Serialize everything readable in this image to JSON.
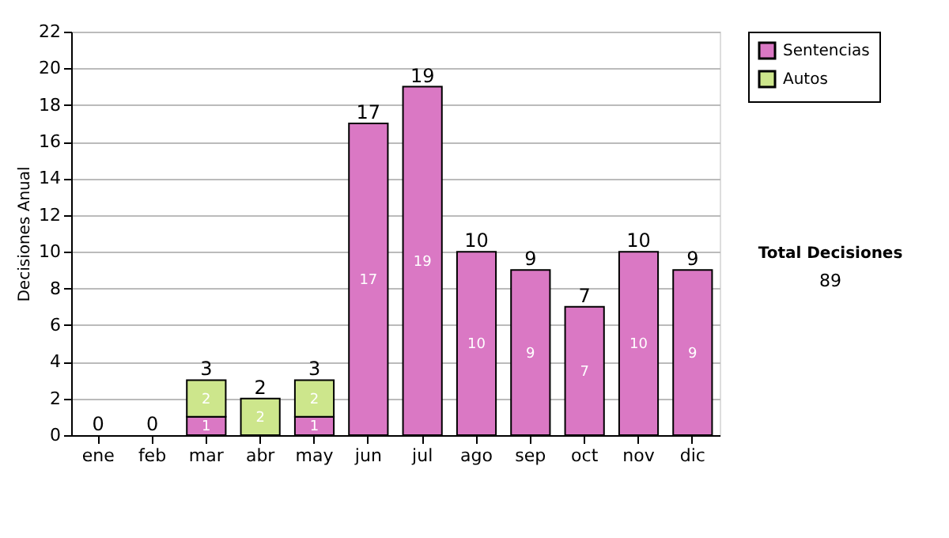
{
  "chart_data": {
    "type": "bar",
    "stacked": true,
    "ylabel": "Decisiones Anual",
    "categories": [
      "ene",
      "feb",
      "mar",
      "abr",
      "may",
      "jun",
      "jul",
      "ago",
      "sep",
      "oct",
      "nov",
      "dic"
    ],
    "series": [
      {
        "name": "Sentencias",
        "color": "#da78c4",
        "values": [
          0,
          0,
          1,
          0,
          1,
          17,
          19,
          10,
          9,
          7,
          10,
          9
        ],
        "value_labels": [
          null,
          null,
          "1",
          null,
          "1",
          "17",
          "19",
          "10",
          "9",
          "7",
          "10",
          "9"
        ]
      },
      {
        "name": "Autos",
        "color": "#cde68c",
        "values": [
          0,
          0,
          2,
          2,
          2,
          0,
          0,
          0,
          0,
          0,
          0,
          0
        ],
        "value_labels": [
          null,
          null,
          "2",
          "2",
          "2",
          null,
          null,
          null,
          null,
          null,
          null,
          null
        ]
      }
    ],
    "totals": [
      "0",
      "0",
      "3",
      "2",
      "3",
      "17",
      "19",
      "10",
      "9",
      "7",
      "10",
      "9"
    ],
    "ylim": [
      0,
      22
    ],
    "yticks": [
      0,
      2,
      4,
      6,
      8,
      10,
      12,
      14,
      16,
      18,
      20,
      22
    ],
    "grid": "y",
    "legend": "right",
    "annotations": [
      "Total Decisiones",
      "89"
    ]
  }
}
